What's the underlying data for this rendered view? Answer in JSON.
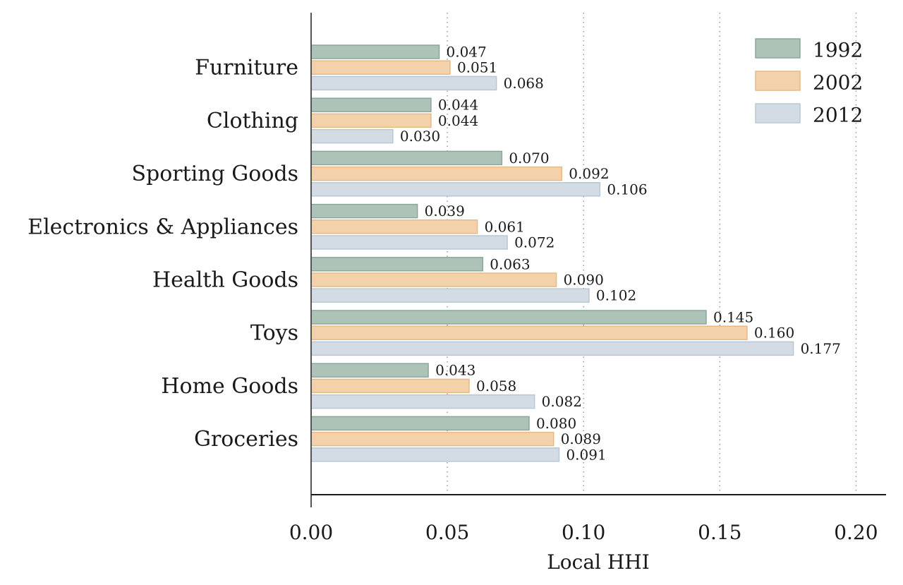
{
  "chart_data": {
    "type": "bar",
    "orientation": "horizontal",
    "categories": [
      "Furniture",
      "Clothing",
      "Sporting Goods",
      "Electronics & Appliances",
      "Health Goods",
      "Toys",
      "Home Goods",
      "Groceries"
    ],
    "series": [
      {
        "name": "1992",
        "color": "#adc3b8",
        "values": [
          0.047,
          0.044,
          0.07,
          0.039,
          0.063,
          0.145,
          0.043,
          0.08
        ]
      },
      {
        "name": "2002",
        "color": "#f3d2ab",
        "values": [
          0.051,
          0.044,
          0.092,
          0.061,
          0.09,
          0.16,
          0.058,
          0.089
        ]
      },
      {
        "name": "2012",
        "color": "#d3dce5",
        "values": [
          0.068,
          0.03,
          0.106,
          0.072,
          0.102,
          0.177,
          0.082,
          0.091
        ]
      }
    ],
    "data_labels": [
      [
        "0.047",
        "0.044",
        "0.070",
        "0.039",
        "0.063",
        "0.145",
        "0.043",
        "0.080"
      ],
      [
        "0.051",
        "0.044",
        "0.092",
        "0.061",
        "0.090",
        "0.160",
        "0.058",
        "0.089"
      ],
      [
        "0.068",
        "0.030",
        "0.106",
        "0.072",
        "0.102",
        "0.177",
        "0.082",
        "0.091"
      ]
    ],
    "xlabel": "Local HHI",
    "ylabel": "",
    "xlim": [
      0,
      0.21
    ],
    "xticks": [
      0,
      0.05,
      0.1,
      0.15,
      0.2
    ],
    "xtick_labels": [
      "0.00",
      "0.05",
      "0.10",
      "0.15",
      "0.20"
    ],
    "grid": "x-dotted",
    "legend": {
      "placement": "top-right",
      "entries": [
        "1992",
        "2002",
        "2012"
      ]
    }
  }
}
